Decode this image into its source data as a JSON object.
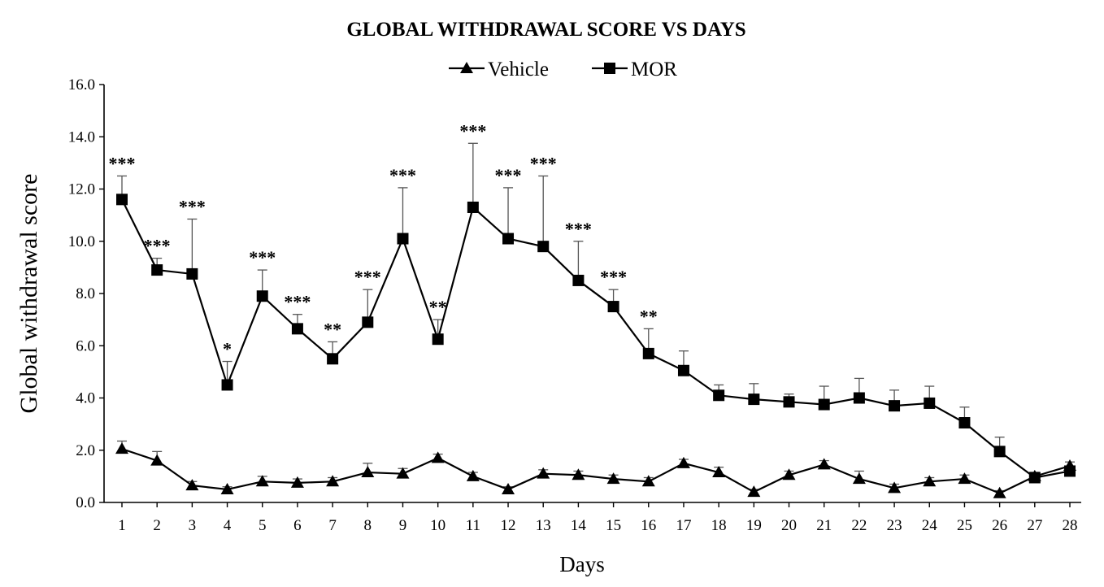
{
  "chart_data": {
    "type": "line",
    "title": "GLOBAL WITHDRAWAL SCORE VS DAYS",
    "xlabel": "Days",
    "ylabel": "Global withdrawal score",
    "x": [
      1,
      2,
      3,
      4,
      5,
      6,
      7,
      8,
      9,
      10,
      11,
      12,
      13,
      14,
      15,
      16,
      17,
      18,
      19,
      20,
      21,
      22,
      23,
      24,
      25,
      26,
      27,
      28
    ],
    "ylim": [
      0,
      16
    ],
    "yticks": [
      "0.0",
      "2.0",
      "4.0",
      "6.0",
      "8.0",
      "10.0",
      "12.0",
      "14.0",
      "16.0"
    ],
    "xticks": [
      "1",
      "2",
      "3",
      "4",
      "5",
      "6",
      "7",
      "8",
      "9",
      "10",
      "11",
      "12",
      "13",
      "14",
      "15",
      "16",
      "17",
      "18",
      "19",
      "20",
      "21",
      "22",
      "23",
      "24",
      "25",
      "26",
      "27",
      "28"
    ],
    "legend_position": "top-center",
    "grid": false,
    "series": [
      {
        "name": "Vehicle",
        "marker": "triangle",
        "color": "#000000",
        "values": [
          2.05,
          1.6,
          0.65,
          0.5,
          0.8,
          0.75,
          0.8,
          1.15,
          1.1,
          1.7,
          1.0,
          0.5,
          1.1,
          1.05,
          0.9,
          0.8,
          1.5,
          1.15,
          0.4,
          1.05,
          1.45,
          0.9,
          0.55,
          0.8,
          0.9,
          0.35,
          1.0,
          1.4
        ],
        "error": [
          0.3,
          0.35,
          0.15,
          0.1,
          0.2,
          0.15,
          0.15,
          0.35,
          0.2,
          0.15,
          0.15,
          0.1,
          0.15,
          0.15,
          0.15,
          0.15,
          0.15,
          0.2,
          0.1,
          0.15,
          0.15,
          0.3,
          0.15,
          0.15,
          0.15,
          0.1,
          0.15,
          0.15
        ]
      },
      {
        "name": "MOR",
        "marker": "square",
        "color": "#000000",
        "values": [
          11.6,
          8.9,
          8.75,
          4.5,
          7.9,
          6.65,
          5.5,
          6.9,
          10.1,
          6.25,
          11.3,
          10.1,
          9.8,
          8.5,
          7.5,
          5.7,
          5.05,
          4.1,
          3.95,
          3.85,
          3.75,
          4.0,
          3.7,
          3.8,
          3.05,
          1.95,
          0.95,
          1.2
        ],
        "error": [
          0.9,
          0.45,
          2.1,
          0.9,
          1.0,
          0.55,
          0.65,
          1.25,
          1.95,
          0.75,
          2.45,
          1.95,
          2.7,
          1.5,
          0.65,
          0.95,
          0.75,
          0.4,
          0.6,
          0.3,
          0.7,
          0.75,
          0.6,
          0.65,
          0.6,
          0.55,
          0.2,
          0.15
        ]
      }
    ],
    "significance": [
      "***",
      "***",
      "***",
      "*",
      "***",
      "***",
      "**",
      "***",
      "***",
      "**",
      "***",
      "***",
      "***",
      "***",
      "***",
      "**",
      "",
      "",
      "",
      "",
      "",
      "",
      "",
      "",
      "",
      "",
      "",
      ""
    ]
  }
}
